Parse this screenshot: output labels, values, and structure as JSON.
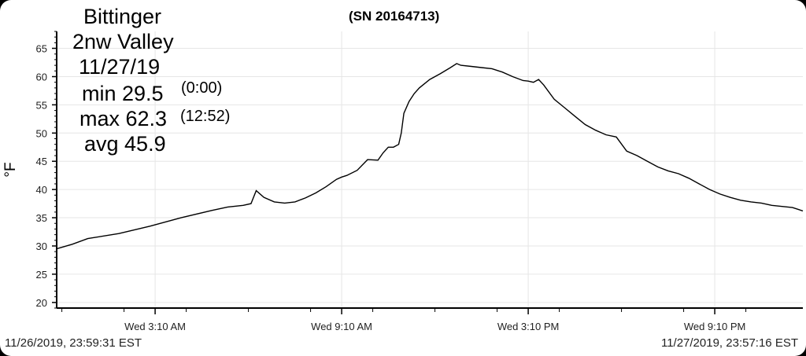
{
  "header": {
    "site_line1": "Bittinger",
    "site_line2": "2nw Valley",
    "date": "11/27/19",
    "min_label": "min 29.5",
    "min_time": "(0:00)",
    "max_label": "max 62.3",
    "max_time": "(12:52)",
    "avg_label": "avg 45.9",
    "serial": "(SN 20164713)"
  },
  "footer": {
    "start": "11/26/2019, 23:59:31 EST",
    "end": "11/27/2019, 23:57:16 EST"
  },
  "chart_data": {
    "type": "line",
    "title": "(SN 20164713)",
    "xlabel": "",
    "ylabel": "°F",
    "ylim": [
      19,
      68
    ],
    "xlim": [
      0,
      1440
    ],
    "x_unit": "minutes after 00:00 on 11/27/2019",
    "yticks": [
      20,
      25,
      30,
      35,
      40,
      45,
      50,
      55,
      60,
      65
    ],
    "xticks": [
      {
        "value": 190,
        "label": "Wed 3:10 AM"
      },
      {
        "value": 550,
        "label": "Wed 9:10 AM"
      },
      {
        "value": 910,
        "label": "Wed 3:10 PM"
      },
      {
        "value": 1270,
        "label": "Wed 9:10 PM"
      }
    ],
    "grid": true,
    "series": [
      {
        "name": "",
        "color": "#000000",
        "x": [
          0,
          30,
          60,
          120,
          180,
          240,
          300,
          330,
          360,
          375,
          385,
          400,
          420,
          440,
          460,
          480,
          500,
          520,
          540,
          550,
          560,
          580,
          600,
          620,
          630,
          640,
          650,
          660,
          665,
          670,
          680,
          690,
          700,
          720,
          740,
          760,
          772,
          780,
          800,
          820,
          840,
          860,
          880,
          900,
          910,
          920,
          930,
          940,
          960,
          980,
          1000,
          1020,
          1040,
          1060,
          1080,
          1100,
          1120,
          1140,
          1160,
          1180,
          1200,
          1220,
          1240,
          1260,
          1280,
          1300,
          1320,
          1340,
          1360,
          1380,
          1400,
          1420,
          1440
        ],
        "y": [
          29.5,
          30.3,
          31.3,
          32.2,
          33.5,
          35.0,
          36.3,
          36.9,
          37.2,
          37.5,
          39.8,
          38.6,
          37.8,
          37.6,
          37.8,
          38.5,
          39.4,
          40.5,
          41.8,
          42.2,
          42.5,
          43.4,
          45.3,
          45.2,
          46.5,
          47.5,
          47.5,
          48.0,
          50.0,
          53.5,
          55.6,
          57.0,
          58.0,
          59.5,
          60.5,
          61.6,
          62.3,
          62.0,
          61.8,
          61.6,
          61.4,
          60.8,
          60.0,
          59.3,
          59.2,
          59.0,
          59.5,
          58.5,
          56.0,
          54.5,
          53.0,
          51.5,
          50.5,
          49.7,
          49.3,
          46.8,
          46.0,
          45.0,
          44.0,
          43.3,
          42.8,
          42.0,
          41.0,
          40.0,
          39.2,
          38.6,
          38.1,
          37.8,
          37.6,
          37.2,
          37.0,
          36.8,
          36.2
        ]
      }
    ]
  }
}
